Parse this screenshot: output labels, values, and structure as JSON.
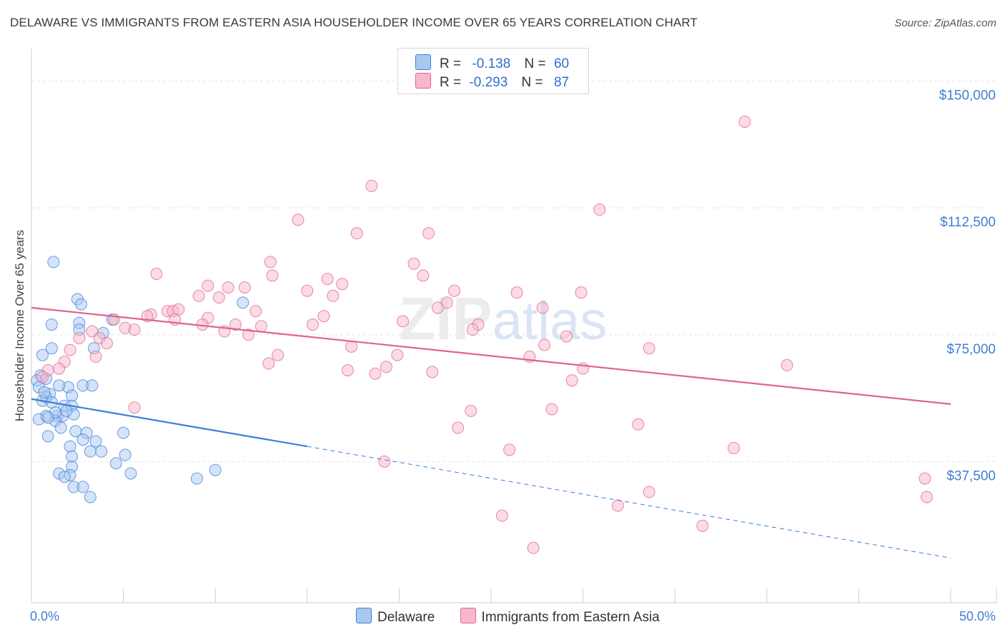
{
  "title": "DELAWARE VS IMMIGRANTS FROM EASTERN ASIA HOUSEHOLDER INCOME OVER 65 YEARS CORRELATION CHART",
  "source": "Source: ZipAtlas.com",
  "watermark": {
    "zip": "ZIP",
    "atlas": "atlas"
  },
  "legend": {
    "rows": [
      {
        "r_label": "R =",
        "r_value": "-0.138",
        "n_label": "N =",
        "n_value": "60",
        "color": "#a9c8f0"
      },
      {
        "r_label": "R =",
        "r_value": "-0.293",
        "n_label": "N =",
        "n_value": "87",
        "color": "#f7b8cb"
      }
    ]
  },
  "chart_data": {
    "type": "scatter",
    "title": "DELAWARE VS IMMIGRANTS FROM EASTERN ASIA HOUSEHOLDER INCOME OVER 65 YEARS CORRELATION CHART",
    "xlabel": "",
    "ylabel": "Householder Income Over 65 years",
    "xlim": [
      0,
      50
    ],
    "ylim": [
      0,
      157500
    ],
    "x_tick_labels": [
      {
        "value": 0,
        "label": "0.0%"
      },
      {
        "value": 50,
        "label": "50.0%"
      }
    ],
    "y_ticks": [
      {
        "value": 37500,
        "label": "$37,500"
      },
      {
        "value": 75000,
        "label": "$75,000"
      },
      {
        "value": 112500,
        "label": "$112,500"
      },
      {
        "value": 150000,
        "label": "$150,000"
      }
    ],
    "series": [
      {
        "name": "Delaware",
        "color": "#3b7fd9",
        "fill": "#a9c8f0",
        "trend": {
          "x": [
            0,
            15
          ],
          "y": [
            56000,
            42000
          ],
          "dashed_to": [
            50,
            9000
          ]
        },
        "points": [
          [
            1.2,
            96500
          ],
          [
            2.5,
            85500
          ],
          [
            2.7,
            84000
          ],
          [
            11.5,
            84500
          ],
          [
            2.6,
            78500
          ],
          [
            1.1,
            78000
          ],
          [
            2.6,
            76500
          ],
          [
            3.9,
            75500
          ],
          [
            4.4,
            79500
          ],
          [
            1.1,
            71000
          ],
          [
            0.6,
            69000
          ],
          [
            3.4,
            71000
          ],
          [
            0.5,
            63000
          ],
          [
            0.3,
            61500
          ],
          [
            0.8,
            62000
          ],
          [
            0.4,
            59500
          ],
          [
            1.0,
            57500
          ],
          [
            0.8,
            56500
          ],
          [
            2.0,
            59500
          ],
          [
            2.8,
            60000
          ],
          [
            3.3,
            60000
          ],
          [
            2.2,
            57000
          ],
          [
            0.6,
            55500
          ],
          [
            1.1,
            55000
          ],
          [
            1.8,
            54000
          ],
          [
            2.2,
            54000
          ],
          [
            2.3,
            51500
          ],
          [
            0.8,
            51000
          ],
          [
            1.4,
            51000
          ],
          [
            1.7,
            51000
          ],
          [
            0.4,
            50000
          ],
          [
            1.3,
            49500
          ],
          [
            1.6,
            47500
          ],
          [
            0.9,
            45000
          ],
          [
            2.4,
            46500
          ],
          [
            3.0,
            46000
          ],
          [
            5.0,
            46000
          ],
          [
            2.8,
            44000
          ],
          [
            3.5,
            43500
          ],
          [
            2.1,
            42000
          ],
          [
            3.2,
            40500
          ],
          [
            3.8,
            40500
          ],
          [
            5.1,
            39500
          ],
          [
            2.2,
            39000
          ],
          [
            4.6,
            37000
          ],
          [
            2.2,
            36000
          ],
          [
            1.5,
            34000
          ],
          [
            2.1,
            33500
          ],
          [
            5.4,
            34000
          ],
          [
            9.0,
            32500
          ],
          [
            10.0,
            35000
          ],
          [
            1.8,
            33000
          ],
          [
            2.3,
            30000
          ],
          [
            2.8,
            30000
          ],
          [
            3.2,
            27000
          ],
          [
            1.3,
            52000
          ],
          [
            0.7,
            58000
          ],
          [
            1.5,
            60000
          ],
          [
            1.9,
            52500
          ],
          [
            0.9,
            50500
          ]
        ]
      },
      {
        "name": "Immigrants from Eastern Asia",
        "color": "#e0628e",
        "fill": "#f7b8cb",
        "trend": {
          "x": [
            0,
            50
          ],
          "y": [
            83000,
            54500
          ]
        },
        "points": [
          [
            38.8,
            138000
          ],
          [
            18.5,
            119000
          ],
          [
            30.9,
            112000
          ],
          [
            14.5,
            109000
          ],
          [
            17.7,
            105000
          ],
          [
            21.6,
            105000
          ],
          [
            13.0,
            96500
          ],
          [
            20.8,
            96000
          ],
          [
            6.8,
            93000
          ],
          [
            13.1,
            92500
          ],
          [
            21.3,
            92500
          ],
          [
            16.1,
            91500
          ],
          [
            9.6,
            89500
          ],
          [
            16.9,
            90000
          ],
          [
            10.7,
            89000
          ],
          [
            11.6,
            89000
          ],
          [
            9.1,
            86500
          ],
          [
            10.2,
            86000
          ],
          [
            15.0,
            88000
          ],
          [
            16.4,
            86500
          ],
          [
            23.0,
            88000
          ],
          [
            26.4,
            87500
          ],
          [
            29.9,
            87500
          ],
          [
            22.6,
            84500
          ],
          [
            7.4,
            82000
          ],
          [
            6.5,
            81000
          ],
          [
            7.7,
            82000
          ],
          [
            8.0,
            82500
          ],
          [
            12.2,
            82000
          ],
          [
            15.9,
            80500
          ],
          [
            22.1,
            83000
          ],
          [
            27.8,
            83000
          ],
          [
            9.6,
            80000
          ],
          [
            6.3,
            80500
          ],
          [
            7.8,
            79500
          ],
          [
            4.5,
            79500
          ],
          [
            11.1,
            78000
          ],
          [
            12.5,
            77500
          ],
          [
            15.3,
            78000
          ],
          [
            20.2,
            79000
          ],
          [
            9.3,
            78000
          ],
          [
            5.1,
            77000
          ],
          [
            5.6,
            76500
          ],
          [
            10.5,
            76000
          ],
          [
            11.8,
            75000
          ],
          [
            24.3,
            78000
          ],
          [
            24.0,
            76500
          ],
          [
            3.3,
            76000
          ],
          [
            2.6,
            74000
          ],
          [
            3.7,
            74000
          ],
          [
            4.1,
            72500
          ],
          [
            17.4,
            71500
          ],
          [
            27.9,
            72000
          ],
          [
            29.1,
            74500
          ],
          [
            33.6,
            71000
          ],
          [
            2.1,
            70500
          ],
          [
            3.5,
            68500
          ],
          [
            13.4,
            69000
          ],
          [
            19.9,
            69000
          ],
          [
            27.1,
            68500
          ],
          [
            12.9,
            66500
          ],
          [
            1.8,
            67000
          ],
          [
            41.1,
            66000
          ],
          [
            1.5,
            65000
          ],
          [
            0.9,
            64500
          ],
          [
            17.2,
            64500
          ],
          [
            19.3,
            65500
          ],
          [
            18.7,
            63500
          ],
          [
            21.8,
            64000
          ],
          [
            29.4,
            61500
          ],
          [
            0.6,
            62500
          ],
          [
            30.0,
            65000
          ],
          [
            5.6,
            53500
          ],
          [
            23.9,
            52500
          ],
          [
            28.3,
            53000
          ],
          [
            23.2,
            47500
          ],
          [
            33.0,
            48500
          ],
          [
            26.0,
            41000
          ],
          [
            38.2,
            41500
          ],
          [
            19.2,
            37500
          ],
          [
            48.6,
            32500
          ],
          [
            33.6,
            28500
          ],
          [
            31.9,
            24500
          ],
          [
            48.7,
            27000
          ],
          [
            25.6,
            21500
          ],
          [
            36.5,
            18500
          ],
          [
            27.3,
            12000
          ]
        ]
      }
    ]
  },
  "bottom_legend": {
    "items": [
      {
        "label": "Delaware",
        "color": "#a9c8f0"
      },
      {
        "label": "Immigrants from Eastern Asia",
        "color": "#f7b8cb"
      }
    ]
  }
}
